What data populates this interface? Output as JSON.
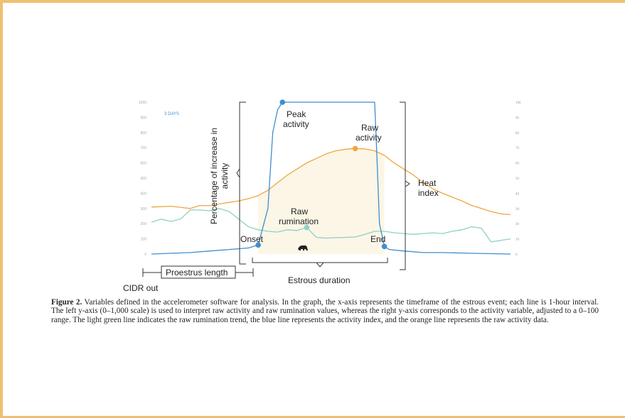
{
  "chart_data": {
    "type": "line",
    "left_axis": {
      "range": [
        0,
        1000
      ],
      "ticks": [
        "0",
        "100",
        "200",
        "300",
        "400",
        "500",
        "600",
        "700",
        "800",
        "900",
        "1000"
      ]
    },
    "right_axis": {
      "range": [
        0,
        100
      ],
      "ticks": [
        "0",
        "10",
        "20",
        "30",
        "40",
        "50",
        "60",
        "70",
        "80",
        "90",
        "100"
      ]
    },
    "timescale_label": "3 DAYS",
    "ylabel": "Percentage of increase in activity",
    "series": [
      {
        "name": "Raw activity",
        "color": "#f0a640",
        "values": [
          [
            0,
            310
          ],
          [
            10,
            312
          ],
          [
            20,
            315
          ],
          [
            30,
            308
          ],
          [
            40,
            300
          ],
          [
            50,
            320
          ],
          [
            60,
            318
          ],
          [
            70,
            330
          ],
          [
            80,
            340
          ],
          [
            90,
            350
          ],
          [
            100,
            365
          ],
          [
            110,
            385
          ],
          [
            120,
            420
          ],
          [
            130,
            470
          ],
          [
            140,
            520
          ],
          [
            150,
            560
          ],
          [
            160,
            600
          ],
          [
            170,
            630
          ],
          [
            180,
            660
          ],
          [
            190,
            680
          ],
          [
            200,
            690
          ],
          [
            210,
            695
          ],
          [
            220,
            692
          ],
          [
            230,
            680
          ],
          [
            240,
            650
          ],
          [
            250,
            600
          ],
          [
            260,
            560
          ],
          [
            270,
            520
          ],
          [
            280,
            470
          ],
          [
            290,
            430
          ],
          [
            300,
            400
          ],
          [
            310,
            375
          ],
          [
            320,
            350
          ],
          [
            330,
            320
          ],
          [
            340,
            300
          ],
          [
            350,
            280
          ],
          [
            360,
            265
          ],
          [
            370,
            260
          ]
        ]
      },
      {
        "name": "Raw rumination",
        "color": "#8fd0c8",
        "values": [
          [
            0,
            210
          ],
          [
            10,
            230
          ],
          [
            20,
            215
          ],
          [
            30,
            230
          ],
          [
            40,
            290
          ],
          [
            50,
            290
          ],
          [
            60,
            285
          ],
          [
            70,
            300
          ],
          [
            80,
            280
          ],
          [
            90,
            230
          ],
          [
            100,
            180
          ],
          [
            110,
            160
          ],
          [
            120,
            150
          ],
          [
            130,
            145
          ],
          [
            140,
            160
          ],
          [
            150,
            155
          ],
          [
            160,
            175
          ],
          [
            170,
            110
          ],
          [
            180,
            105
          ],
          [
            190,
            108
          ],
          [
            200,
            110
          ],
          [
            210,
            112
          ],
          [
            220,
            130
          ],
          [
            230,
            150
          ],
          [
            240,
            150
          ],
          [
            250,
            140
          ],
          [
            260,
            135
          ],
          [
            270,
            130
          ],
          [
            280,
            135
          ],
          [
            290,
            140
          ],
          [
            300,
            135
          ],
          [
            310,
            150
          ],
          [
            320,
            160
          ],
          [
            330,
            180
          ],
          [
            340,
            170
          ],
          [
            350,
            80
          ],
          [
            360,
            90
          ],
          [
            370,
            100
          ]
        ]
      },
      {
        "name": "Activity index",
        "color": "#3e8ed0",
        "values": [
          [
            0,
            0
          ],
          [
            20,
            0.5
          ],
          [
            40,
            1
          ],
          [
            60,
            2
          ],
          [
            80,
            3
          ],
          [
            100,
            4
          ],
          [
            110,
            6
          ],
          [
            120,
            30
          ],
          [
            125,
            80
          ],
          [
            130,
            95
          ],
          [
            135,
            100
          ],
          [
            150,
            100
          ],
          [
            200,
            100
          ],
          [
            220,
            100
          ],
          [
            230,
            100
          ],
          [
            232,
            70
          ],
          [
            235,
            20
          ],
          [
            240,
            5
          ],
          [
            245,
            3
          ],
          [
            260,
            2
          ],
          [
            280,
            1
          ],
          [
            300,
            1
          ],
          [
            330,
            0.5
          ],
          [
            370,
            0
          ]
        ]
      }
    ],
    "markers": [
      {
        "label": "Onset",
        "x": 110,
        "y": 6,
        "axis": "right"
      },
      {
        "label": "Peak activity",
        "x": 135,
        "y": 100,
        "axis": "right"
      },
      {
        "label": "Raw activity",
        "x": 210,
        "y": 695,
        "axis": "left"
      },
      {
        "label": "Raw rumination",
        "x": 160,
        "y": 175,
        "axis": "left"
      },
      {
        "label": "End",
        "x": 240,
        "y": 5,
        "axis": "right"
      }
    ],
    "annotations": {
      "heat_index": "Heat index",
      "proestrus": "Proestrus length",
      "cidr_out": "CIDR out",
      "estrous_duration": "Estrous duration",
      "onset": "Onset",
      "end": "End",
      "peak_activity": "Peak activity",
      "raw_activity": "Raw activity",
      "raw_rumination": "Raw rumination"
    }
  },
  "caption": {
    "label": "Figure 2.",
    "text": "Variables defined in the accelerometer software for analysis. In the graph, the x-axis represents the timeframe of the estrous event; each line is 1-hour interval. The left y-axis (0–1,000 scale) is used to interpret raw activity and raw rumination values, whereas the right y-axis corresponds to the activity variable, adjusted to a 0–100 range. The light green line indicates the raw rumination trend, the blue line represents the activity index, and the orange line represents the raw activity data."
  },
  "colors": {
    "frame": "#f0c070",
    "highlight_fill": "#fbf6e6"
  }
}
